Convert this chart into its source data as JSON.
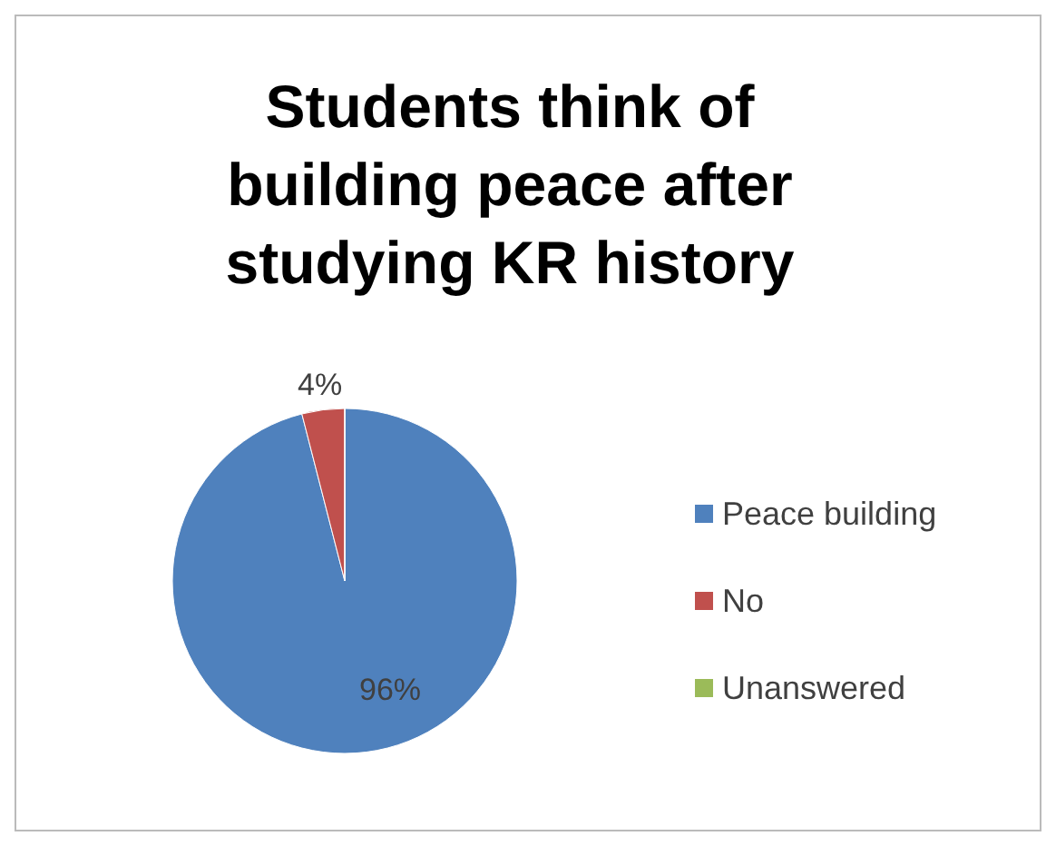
{
  "chart_data": {
    "type": "pie",
    "title": "Students think of building peace after studying KR history",
    "categories": [
      "Peace building",
      "No",
      "Unanswered"
    ],
    "values": [
      96,
      4,
      0
    ],
    "colors": [
      "#4f81bd",
      "#c0504d",
      "#9bbb59"
    ],
    "value_labels": [
      "96%",
      "4%",
      null
    ],
    "legend": "right"
  }
}
